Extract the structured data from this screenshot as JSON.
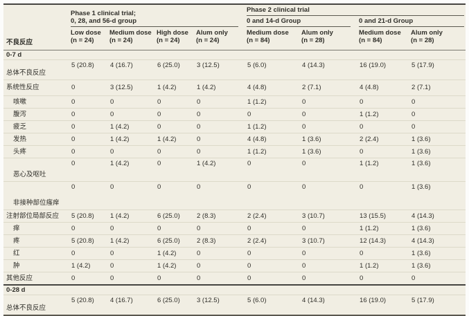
{
  "header": {
    "stub_label": "不良反应",
    "phase1": {
      "line1": "Phase 1 clinical trial;",
      "line2": "0, 28, and 56-d group"
    },
    "phase2": {
      "title": "Phase 2 clinical trial",
      "subgroups": [
        "0 and 14-d Group",
        "0 and 21-d Group"
      ]
    },
    "columns": [
      {
        "label": "Low dose",
        "n": "(n = 24)"
      },
      {
        "label": "Medium dose",
        "n": "(n = 24)"
      },
      {
        "label": "High dose",
        "n": "(n = 24)"
      },
      {
        "label": "Alum only",
        "n": "(n = 24)"
      },
      {
        "label": "Medium dose",
        "n": "(n = 84)"
      },
      {
        "label": "Alum only",
        "n": "(n = 28)"
      },
      {
        "label": "Medium dose",
        "n": "(n = 84)"
      },
      {
        "label": "Alum only",
        "n": "(n = 28)"
      }
    ]
  },
  "sections": [
    {
      "title": "0-7 d",
      "rows": [
        {
          "label": "总体不良反应",
          "indent": 0,
          "variant": "t1",
          "low": true,
          "values": [
            "5 (20.8)",
            "4 (16.7)",
            "6 (25.0)",
            "3 (12.5)",
            "5 (6.0)",
            "4 (14.3)",
            "16 (19.0)",
            "5 (17.9)"
          ]
        },
        {
          "label": "系统性反应",
          "indent": 0,
          "variant": "t1",
          "low": false,
          "values": [
            "0",
            "3 (12.5)",
            "1 (4.2)",
            "1 (4.2)",
            "4 (4.8)",
            "2 (7.1)",
            "4 (4.8)",
            "2 (7.1)"
          ]
        },
        {
          "label": "咳嗽",
          "indent": 1,
          "variant": "",
          "low": false,
          "values": [
            "0",
            "0",
            "0",
            "0",
            "1 (1.2)",
            "0",
            "0",
            "0"
          ]
        },
        {
          "label": "腹泻",
          "indent": 1,
          "variant": "",
          "low": false,
          "values": [
            "0",
            "0",
            "0",
            "0",
            "0",
            "0",
            "1 (1.2)",
            "0"
          ]
        },
        {
          "label": "疲乏",
          "indent": 1,
          "variant": "",
          "low": false,
          "values": [
            "0",
            "1 (4.2)",
            "0",
            "0",
            "1 (1.2)",
            "0",
            "0",
            "0"
          ]
        },
        {
          "label": "发热",
          "indent": 1,
          "variant": "",
          "low": false,
          "values": [
            "0",
            "1 (4.2)",
            "1 (4.2)",
            "0",
            "4 (4.8)",
            "1 (3.6)",
            "2 (2.4)",
            "1 (3.6)"
          ]
        },
        {
          "label": "头疼",
          "indent": 1,
          "variant": "",
          "low": false,
          "values": [
            "0",
            "0",
            "0",
            "0",
            "1 (1.2)",
            "1 (3.6)",
            "0",
            "1 (3.6)"
          ]
        },
        {
          "label": "恶心及呕吐",
          "indent": 1,
          "variant": "t2",
          "low": true,
          "values": [
            "0",
            "1 (4.2)",
            "0",
            "1 (4.2)",
            "0",
            "0",
            "1 (1.2)",
            "1 (3.6)"
          ]
        },
        {
          "label": "非接种部位瘙痒",
          "indent": 1,
          "variant": "t3",
          "low": true,
          "values": [
            "0",
            "0",
            "0",
            "0",
            "0",
            "0",
            "0",
            "1 (3.6)"
          ]
        },
        {
          "label": "注射部位局部反应",
          "indent": 0,
          "variant": "",
          "low": false,
          "values": [
            "5 (20.8)",
            "1 (4.2)",
            "6 (25.0)",
            "2 (8.3)",
            "2 (2.4)",
            "3 (10.7)",
            "13 (15.5)",
            "4 (14.3)"
          ]
        },
        {
          "label": "痒",
          "indent": 1,
          "variant": "",
          "low": false,
          "values": [
            "0",
            "0",
            "0",
            "0",
            "0",
            "0",
            "1 (1.2)",
            "1 (3.6)"
          ]
        },
        {
          "label": "疼",
          "indent": 1,
          "variant": "",
          "low": false,
          "values": [
            "5 (20.8)",
            "1 (4.2)",
            "6 (25.0)",
            "2 (8.3)",
            "2 (2.4)",
            "3 (10.7)",
            "12 (14.3)",
            "4 (14.3)"
          ]
        },
        {
          "label": "红",
          "indent": 1,
          "variant": "",
          "low": false,
          "values": [
            "0",
            "0",
            "1 (4.2)",
            "0",
            "0",
            "0",
            "0",
            "1 (3.6)"
          ]
        },
        {
          "label": "肿",
          "indent": 1,
          "variant": "",
          "low": false,
          "values": [
            "1 (4.2)",
            "0",
            "1 (4.2)",
            "0",
            "0",
            "0",
            "1 (1.2)",
            "1 (3.6)"
          ]
        },
        {
          "label": "其他反应",
          "indent": 0,
          "variant": "",
          "low": false,
          "values": [
            "0",
            "0",
            "0",
            "0",
            "0",
            "0",
            "0",
            "0"
          ]
        }
      ]
    },
    {
      "title": "0-28 d",
      "rows": [
        {
          "label": "总体不良反应",
          "indent": 0,
          "variant": "t1",
          "low": true,
          "values": [
            "5 (20.8)",
            "4 (16.7)",
            "6 (25.0)",
            "3 (12.5)",
            "5 (6.0)",
            "4 (14.3)",
            "16 (19.0)",
            "5 (17.9)"
          ]
        }
      ]
    }
  ],
  "colors": {
    "table_bg": "#f1eee3",
    "dark_rule": "#454440",
    "light_rule": "#dcd9c9",
    "text": "#2f2e29"
  }
}
